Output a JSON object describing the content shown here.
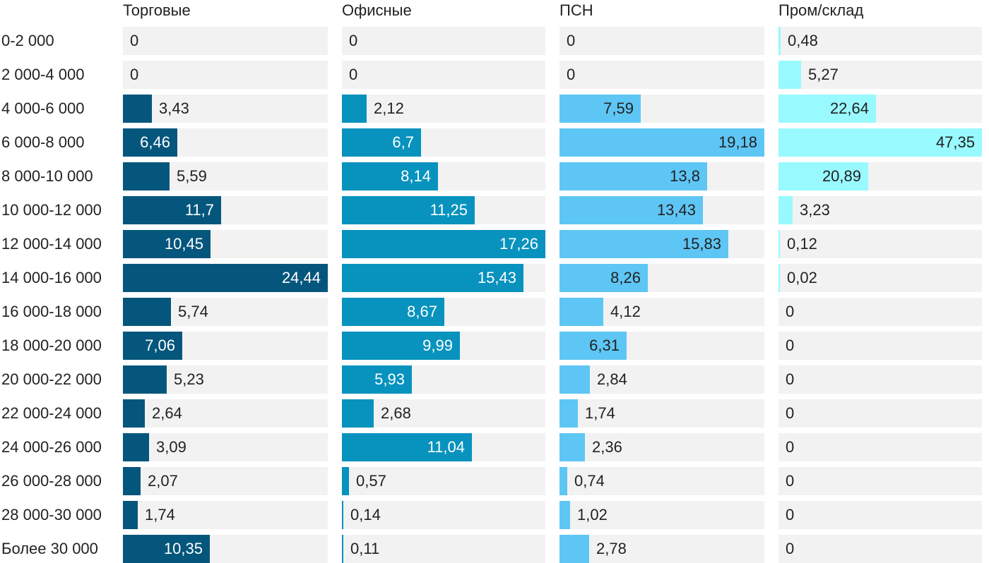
{
  "chart_data": {
    "type": "bar",
    "orientation": "horizontal",
    "layout": "small-multiples",
    "categories": [
      "0-2 000",
      "2 000-4 000",
      "4 000-6 000",
      "6 000-8 000",
      "8 000-10 000",
      "10 000-12 000",
      "12 000-14 000",
      "14 000-16 000",
      "16 000-18 000",
      "18 000-20 000",
      "20 000-22 000",
      "22 000-24 000",
      "24 000-26 000",
      "26 000-28 000",
      "28 000-30 000",
      "Более 30 000"
    ],
    "series": [
      {
        "name": "Торговые",
        "color": "#05567c",
        "max": 24.44,
        "values": [
          0,
          0,
          3.43,
          6.46,
          5.59,
          11.7,
          10.45,
          24.44,
          5.74,
          7.06,
          5.23,
          2.64,
          3.09,
          2.07,
          1.74,
          10.35
        ],
        "labels": [
          "0",
          "0",
          "3,43",
          "6,46",
          "5,59",
          "11,7",
          "10,45",
          "24,44",
          "5,74",
          "7,06",
          "5,23",
          "2,64",
          "3,09",
          "2,07",
          "1,74",
          "10,35"
        ]
      },
      {
        "name": "Офисные",
        "color": "#0892be",
        "max": 17.26,
        "values": [
          0,
          0,
          2.12,
          6.7,
          8.14,
          11.25,
          17.26,
          15.43,
          8.67,
          9.99,
          5.93,
          2.68,
          11.04,
          0.57,
          0.14,
          0.11
        ],
        "labels": [
          "0",
          "0",
          "2,12",
          "6,7",
          "8,14",
          "11,25",
          "17,26",
          "15,43",
          "8,67",
          "9,99",
          "5,93",
          "2,68",
          "11,04",
          "0,57",
          "0,14",
          "0,11"
        ]
      },
      {
        "name": "ПСН",
        "color": "#5ec6f5",
        "max": 19.18,
        "values": [
          0,
          0,
          7.59,
          19.18,
          13.8,
          13.43,
          15.83,
          8.26,
          4.12,
          6.31,
          2.84,
          1.74,
          2.36,
          0.74,
          1.02,
          2.78
        ],
        "labels": [
          "0",
          "0",
          "7,59",
          "19,18",
          "13,8",
          "13,43",
          "15,83",
          "8,26",
          "4,12",
          "6,31",
          "2,84",
          "1,74",
          "2,36",
          "0,74",
          "1,02",
          "2,78"
        ]
      },
      {
        "name": "Пром/склад",
        "color": "#98f9fe",
        "max": 47.35,
        "values": [
          0.48,
          5.27,
          22.64,
          47.35,
          20.89,
          3.23,
          0.12,
          0.02,
          0,
          0,
          0,
          0,
          0,
          0,
          0,
          0
        ],
        "labels": [
          "0,48",
          "5,27",
          "22,64",
          "47,35",
          "20,89",
          "3,23",
          "0,12",
          "0,02",
          "0",
          "0",
          "0",
          "0",
          "0",
          "0",
          "0",
          "0"
        ]
      }
    ]
  }
}
